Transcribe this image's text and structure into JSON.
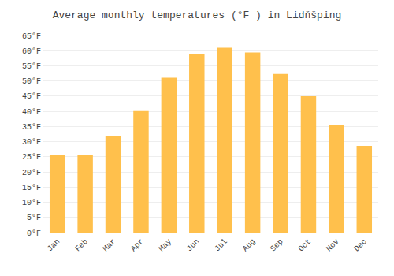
{
  "chart_data": {
    "type": "bar",
    "title": "Average monthly temperatures (°F ) in Lidňšping",
    "categories": [
      "Jan",
      "Feb",
      "Mar",
      "Apr",
      "May",
      "Jun",
      "Jul",
      "Aug",
      "Sep",
      "Oct",
      "Nov",
      "Dec"
    ],
    "values": [
      25.7,
      25.7,
      31.8,
      40.1,
      51.1,
      58.8,
      61.0,
      59.4,
      52.3,
      45.0,
      35.6,
      28.6
    ],
    "color": "#FFC04C",
    "ylim": [
      0,
      65
    ],
    "yticks": [
      {
        "value": 0,
        "label": "0°F"
      },
      {
        "value": 5,
        "label": "5°F"
      },
      {
        "value": 10,
        "label": "10°F"
      },
      {
        "value": 15,
        "label": "15°F"
      },
      {
        "value": 20,
        "label": "20°F"
      },
      {
        "value": 25,
        "label": "25°F"
      },
      {
        "value": 30,
        "label": "30°F"
      },
      {
        "value": 35,
        "label": "35°F"
      },
      {
        "value": 40,
        "label": "40°F"
      },
      {
        "value": 45,
        "label": "45°F"
      },
      {
        "value": 50,
        "label": "50°F"
      },
      {
        "value": 55,
        "label": "55°F"
      },
      {
        "value": 60,
        "label": "60°F"
      },
      {
        "value": 65,
        "label": "65°F"
      }
    ],
    "grid": true
  }
}
